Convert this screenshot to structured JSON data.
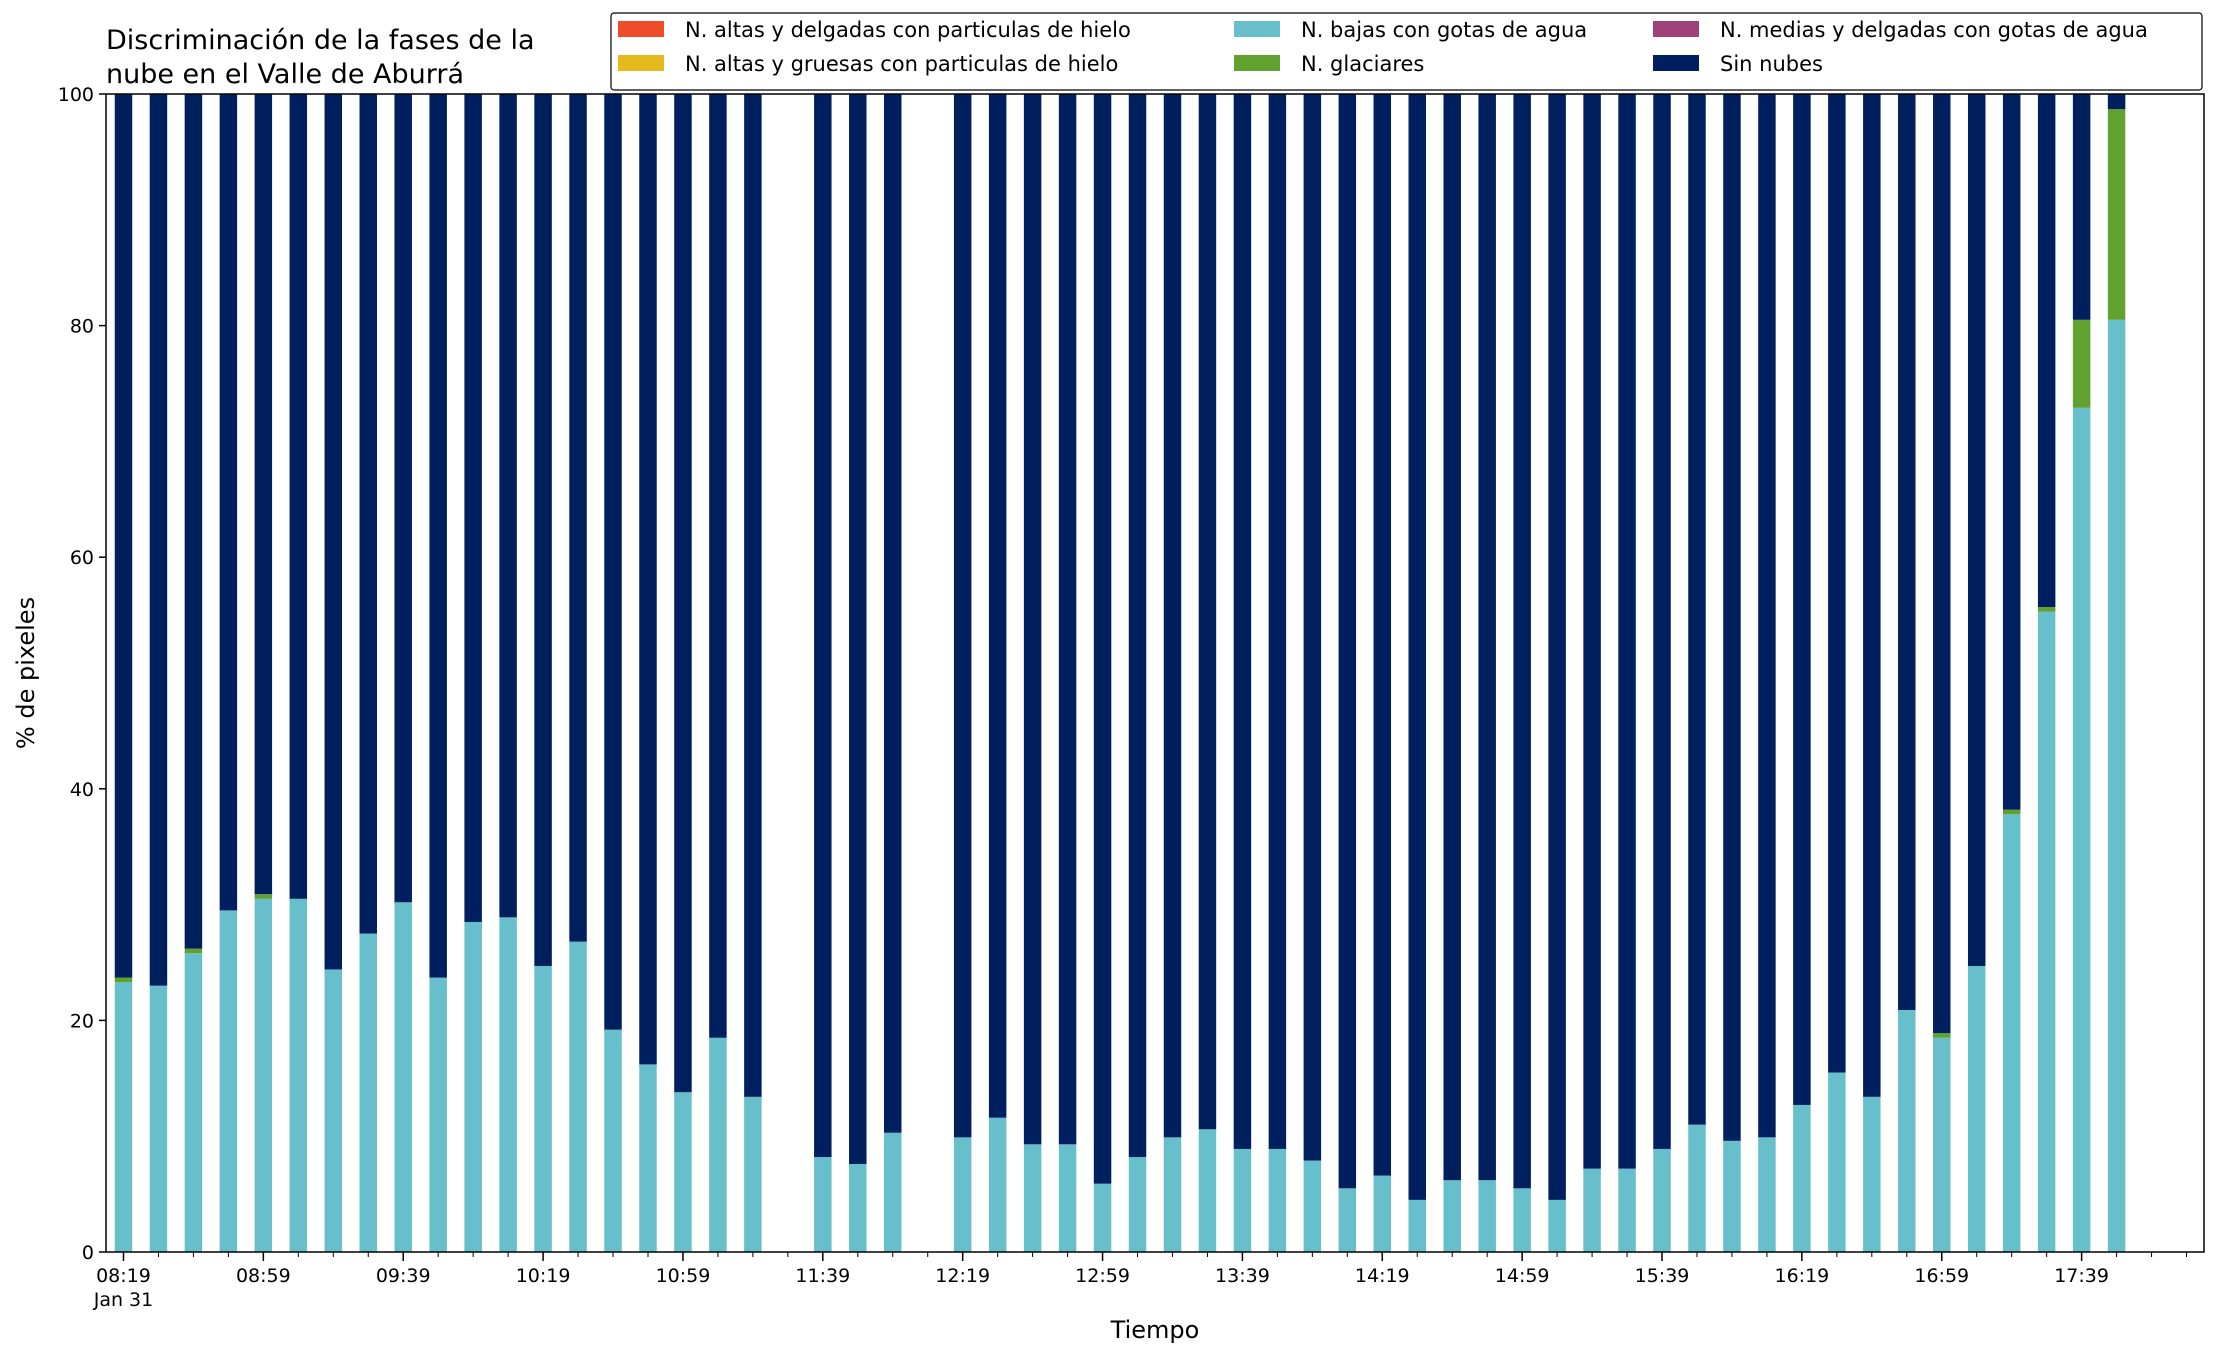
{
  "chart_data": {
    "type": "bar",
    "stacked": true,
    "title_lines": [
      "Discriminación de la fases de la",
      "nube en el Valle de Aburrá"
    ],
    "xlabel": "Tiempo",
    "ylabel": "% de pixeles",
    "ylim": [
      0,
      100
    ],
    "yticks": [
      "0",
      "20",
      "40",
      "60",
      "80",
      "100"
    ],
    "grid": false,
    "legend_position": "top-right",
    "time_start": "08:19",
    "time_step_minutes": 10,
    "slot_count": 60,
    "x_tick_labels": [
      {
        "slot": 0,
        "text": "08:19",
        "subtext": "Jan 31"
      },
      {
        "slot": 4,
        "text": "08:59"
      },
      {
        "slot": 8,
        "text": "09:39"
      },
      {
        "slot": 12,
        "text": "10:19"
      },
      {
        "slot": 16,
        "text": "10:59"
      },
      {
        "slot": 20,
        "text": "11:39"
      },
      {
        "slot": 24,
        "text": "12:19"
      },
      {
        "slot": 28,
        "text": "12:59"
      },
      {
        "slot": 32,
        "text": "13:39"
      },
      {
        "slot": 36,
        "text": "14:19"
      },
      {
        "slot": 40,
        "text": "14:59"
      },
      {
        "slot": 44,
        "text": "15:39"
      },
      {
        "slot": 48,
        "text": "16:19"
      },
      {
        "slot": 52,
        "text": "16:59"
      },
      {
        "slot": 56,
        "text": "17:39"
      }
    ],
    "legend": [
      {
        "name": "N. altas y delgadas con particulas de hielo",
        "color": "#ef4d2a"
      },
      {
        "name": "N. altas y gruesas con particulas de hielo",
        "color": "#e6b91e"
      },
      {
        "name": "N. bajas con gotas de agua",
        "color": "#67bfcb"
      },
      {
        "name": "N. glaciares",
        "color": "#61a22f"
      },
      {
        "name": "N. medias y delgadas con gotas de agua",
        "color": "#a0427a"
      },
      {
        "name": "Sin nubes",
        "color": "#001f5f"
      }
    ],
    "stack_order": [
      "N. bajas con gotas de agua",
      "N. glaciares",
      "Sin nubes"
    ],
    "bars": [
      {
        "slot": 0,
        "bajas": 23.3,
        "glaciares": 0.4
      },
      {
        "slot": 1,
        "bajas": 23.0,
        "glaciares": 0.0
      },
      {
        "slot": 2,
        "bajas": 25.8,
        "glaciares": 0.4
      },
      {
        "slot": 3,
        "bajas": 29.5,
        "glaciares": 0.0
      },
      {
        "slot": 4,
        "bajas": 30.5,
        "glaciares": 0.4
      },
      {
        "slot": 5,
        "bajas": 30.5,
        "glaciares": 0.0
      },
      {
        "slot": 6,
        "bajas": 24.4,
        "glaciares": 0.0
      },
      {
        "slot": 7,
        "bajas": 27.5,
        "glaciares": 0.0
      },
      {
        "slot": 8,
        "bajas": 30.2,
        "glaciares": 0.0
      },
      {
        "slot": 9,
        "bajas": 23.7,
        "glaciares": 0.0
      },
      {
        "slot": 10,
        "bajas": 28.5,
        "glaciares": 0.0
      },
      {
        "slot": 11,
        "bajas": 28.9,
        "glaciares": 0.0
      },
      {
        "slot": 12,
        "bajas": 24.7,
        "glaciares": 0.0
      },
      {
        "slot": 13,
        "bajas": 26.8,
        "glaciares": 0.0
      },
      {
        "slot": 14,
        "bajas": 19.2,
        "glaciares": 0.0
      },
      {
        "slot": 15,
        "bajas": 16.2,
        "glaciares": 0.0
      },
      {
        "slot": 16,
        "bajas": 13.8,
        "glaciares": 0.0
      },
      {
        "slot": 17,
        "bajas": 18.5,
        "glaciares": 0.0
      },
      {
        "slot": 18,
        "bajas": 13.4,
        "glaciares": 0.0
      },
      {
        "slot": 20,
        "bajas": 8.2,
        "glaciares": 0.0
      },
      {
        "slot": 21,
        "bajas": 7.6,
        "glaciares": 0.0
      },
      {
        "slot": 22,
        "bajas": 10.3,
        "glaciares": 0.0
      },
      {
        "slot": 24,
        "bajas": 9.9,
        "glaciares": 0.0
      },
      {
        "slot": 25,
        "bajas": 11.6,
        "glaciares": 0.0
      },
      {
        "slot": 26,
        "bajas": 9.3,
        "glaciares": 0.0
      },
      {
        "slot": 27,
        "bajas": 9.3,
        "glaciares": 0.0
      },
      {
        "slot": 28,
        "bajas": 5.9,
        "glaciares": 0.0
      },
      {
        "slot": 29,
        "bajas": 8.2,
        "glaciares": 0.0
      },
      {
        "slot": 30,
        "bajas": 9.9,
        "glaciares": 0.0
      },
      {
        "slot": 31,
        "bajas": 10.6,
        "glaciares": 0.0
      },
      {
        "slot": 32,
        "bajas": 8.9,
        "glaciares": 0.0
      },
      {
        "slot": 33,
        "bajas": 8.9,
        "glaciares": 0.0
      },
      {
        "slot": 34,
        "bajas": 7.9,
        "glaciares": 0.0
      },
      {
        "slot": 35,
        "bajas": 5.5,
        "glaciares": 0.0
      },
      {
        "slot": 36,
        "bajas": 6.6,
        "glaciares": 0.0
      },
      {
        "slot": 37,
        "bajas": 4.5,
        "glaciares": 0.0
      },
      {
        "slot": 38,
        "bajas": 6.2,
        "glaciares": 0.0
      },
      {
        "slot": 39,
        "bajas": 6.2,
        "glaciares": 0.0
      },
      {
        "slot": 40,
        "bajas": 5.5,
        "glaciares": 0.0
      },
      {
        "slot": 41,
        "bajas": 4.5,
        "glaciares": 0.0
      },
      {
        "slot": 42,
        "bajas": 7.2,
        "glaciares": 0.0
      },
      {
        "slot": 43,
        "bajas": 7.2,
        "glaciares": 0.0
      },
      {
        "slot": 44,
        "bajas": 8.9,
        "glaciares": 0.0
      },
      {
        "slot": 45,
        "bajas": 11.0,
        "glaciares": 0.0
      },
      {
        "slot": 46,
        "bajas": 9.6,
        "glaciares": 0.0
      },
      {
        "slot": 47,
        "bajas": 9.9,
        "glaciares": 0.0
      },
      {
        "slot": 48,
        "bajas": 12.7,
        "glaciares": 0.0
      },
      {
        "slot": 49,
        "bajas": 15.5,
        "glaciares": 0.0
      },
      {
        "slot": 50,
        "bajas": 13.4,
        "glaciares": 0.0
      },
      {
        "slot": 51,
        "bajas": 20.9,
        "glaciares": 0.0
      },
      {
        "slot": 52,
        "bajas": 18.5,
        "glaciares": 0.4
      },
      {
        "slot": 53,
        "bajas": 24.7,
        "glaciares": 0.0
      },
      {
        "slot": 54,
        "bajas": 37.8,
        "glaciares": 0.4
      },
      {
        "slot": 55,
        "bajas": 55.3,
        "glaciares": 0.4
      },
      {
        "slot": 56,
        "bajas": 72.9,
        "glaciares": 7.6
      },
      {
        "slot": 57,
        "bajas": 80.5,
        "glaciares": 18.2
      }
    ]
  }
}
